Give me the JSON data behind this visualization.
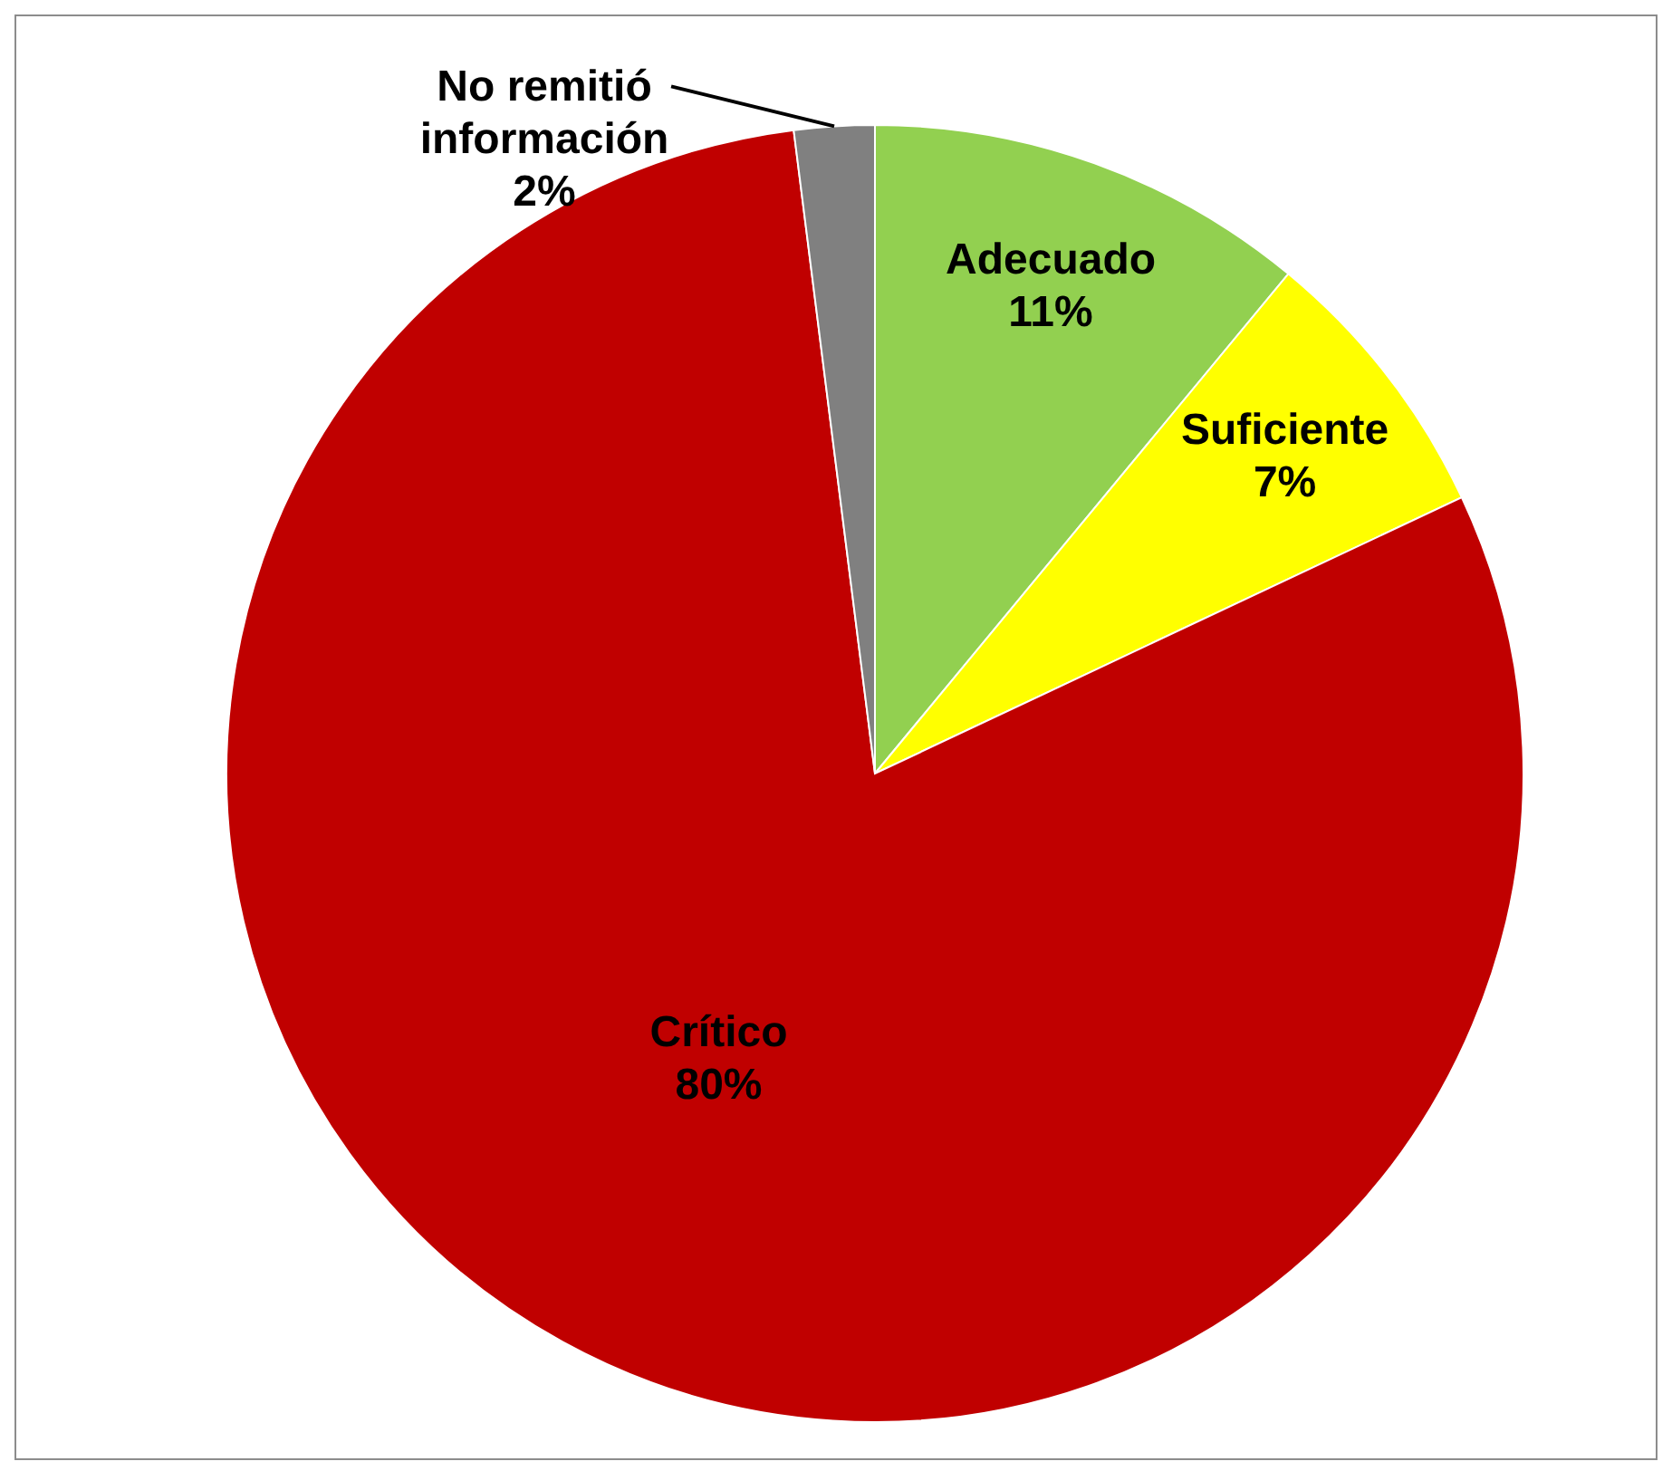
{
  "chart_data": {
    "type": "pie",
    "categories": [
      "Adecuado",
      "Suficiente",
      "Crítico",
      "No remitió información"
    ],
    "values": [
      11,
      7,
      80,
      2
    ],
    "colors": [
      "#92d050",
      "#ffff00",
      "#c00000",
      "#808080"
    ],
    "value_labels": [
      "11%",
      "7%",
      "80%",
      "2%"
    ],
    "legend": false
  }
}
